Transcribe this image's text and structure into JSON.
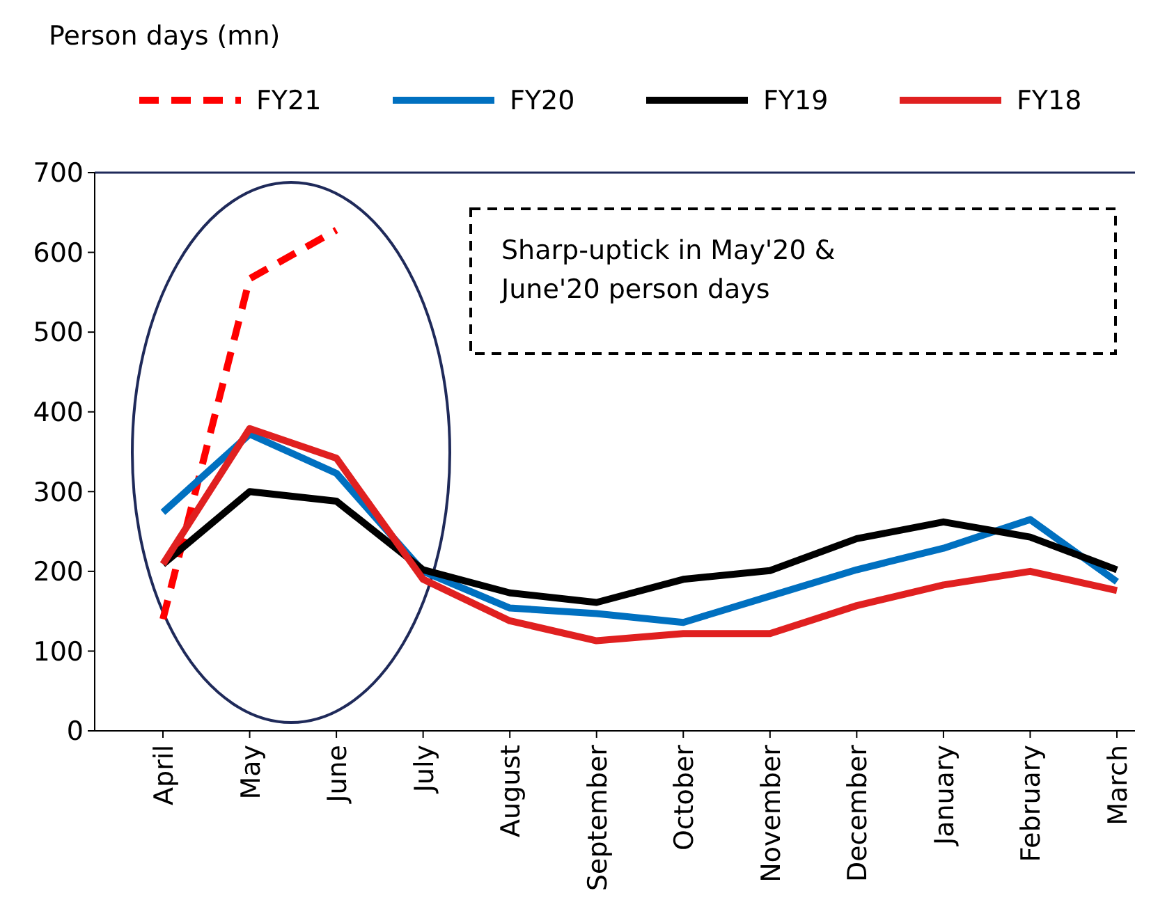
{
  "chart_data": {
    "type": "line",
    "ylabel": "Person days (mn)",
    "categories": [
      "April",
      "May",
      "June",
      "July",
      "August",
      "September",
      "October",
      "November",
      "December",
      "January",
      "February",
      "March"
    ],
    "series": [
      {
        "name": "FY21",
        "color": "#ff0000",
        "line_style": "dashed",
        "values": [
          140,
          567,
          628,
          null,
          null,
          null,
          null,
          null,
          null,
          null,
          null,
          null
        ]
      },
      {
        "name": "FY20",
        "color": "#0070c0",
        "values": [
          274,
          372,
          323,
          200,
          154,
          147,
          136,
          169,
          202,
          229,
          265,
          187
        ]
      },
      {
        "name": "FY19",
        "color": "#000000",
        "values": [
          209,
          300,
          288,
          202,
          173,
          161,
          190,
          201,
          241,
          262,
          243,
          202
        ]
      },
      {
        "name": "FY18",
        "color": "#e02020",
        "values": [
          209,
          379,
          342,
          190,
          138,
          113,
          122,
          122,
          157,
          183,
          200,
          176
        ]
      }
    ],
    "ylim": [
      0,
      700
    ],
    "yticks": [
      0,
      100,
      200,
      300,
      400,
      500,
      600,
      700
    ],
    "grid": false,
    "legend": "top",
    "marker": "none",
    "annotations": [
      "Sharp-uptick in May'20 & June'20 person days"
    ]
  }
}
